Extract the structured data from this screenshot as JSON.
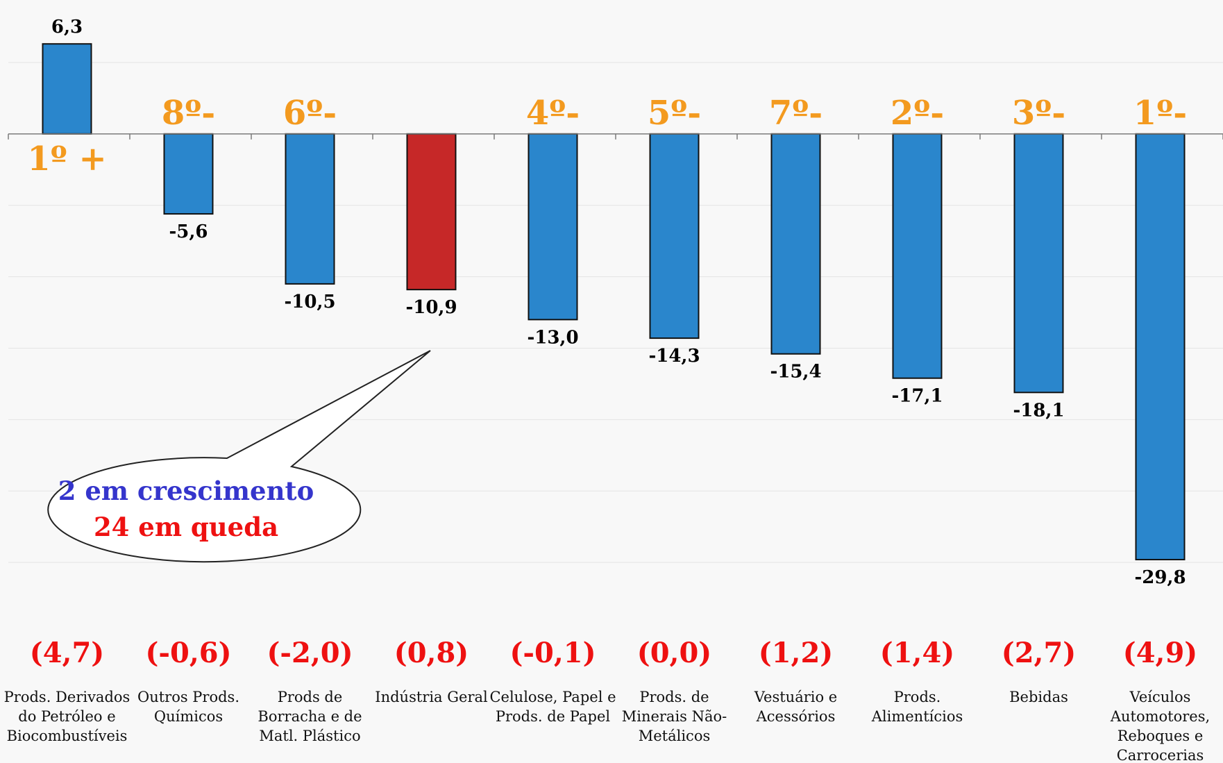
{
  "chart_data": {
    "type": "bar",
    "categories": [
      [
        "Prods. Derivados",
        "do Petróleo e",
        "Biocombustíveis"
      ],
      [
        "Outros Prods.",
        "Químicos"
      ],
      [
        "Prods de",
        "Borracha e de",
        "Matl. Plástico"
      ],
      [
        "Indústria Geral"
      ],
      [
        "Celulose, Papel e",
        "Prods. de Papel"
      ],
      [
        "Prods. de",
        "Minerais Não-",
        "Metálicos"
      ],
      [
        "Vestuário e",
        "Acessórios"
      ],
      [
        "Prods.",
        "Alimentícios"
      ],
      [
        "Bebidas"
      ],
      [
        "Veículos",
        "Automotores,",
        "Reboques e",
        "Carrocerias"
      ]
    ],
    "values": [
      6.3,
      -5.6,
      -10.5,
      -10.9,
      -13.0,
      -14.3,
      -15.4,
      -17.1,
      -18.1,
      -29.8
    ],
    "value_labels": [
      "6,3",
      "-5,6",
      "-10,5",
      "-10,9",
      "-13,0",
      "-14,3",
      "-15,4",
      "-17,1",
      "-18,1",
      "-29,8"
    ],
    "ranks": [
      "1º +",
      "8º-",
      "6º-",
      "",
      "4º-",
      "5º-",
      "7º-",
      "2º-",
      "3º-",
      "1º-"
    ],
    "parenthetical": [
      "(4,7)",
      "(-0,6)",
      "(-2,0)",
      "(0,8)",
      "(-0,1)",
      "(0,0)",
      "(1,2)",
      "(1,4)",
      "(2,7)",
      "(4,9)"
    ],
    "colors": {
      "bar": "#2a86cc",
      "highlight_bar": "#c62828",
      "rank": "#f39a1f",
      "parenthetical": "#ee1111",
      "callout_line1": "#3535cc",
      "callout_line2": "#ee1111"
    },
    "highlight_index": 3,
    "ylim": [
      -33.2,
      8.4
    ],
    "grid": true,
    "callout": {
      "line1": "2 em crescimento",
      "line2": "24 em queda"
    },
    "title": "",
    "xlabel": "",
    "ylabel": ""
  }
}
